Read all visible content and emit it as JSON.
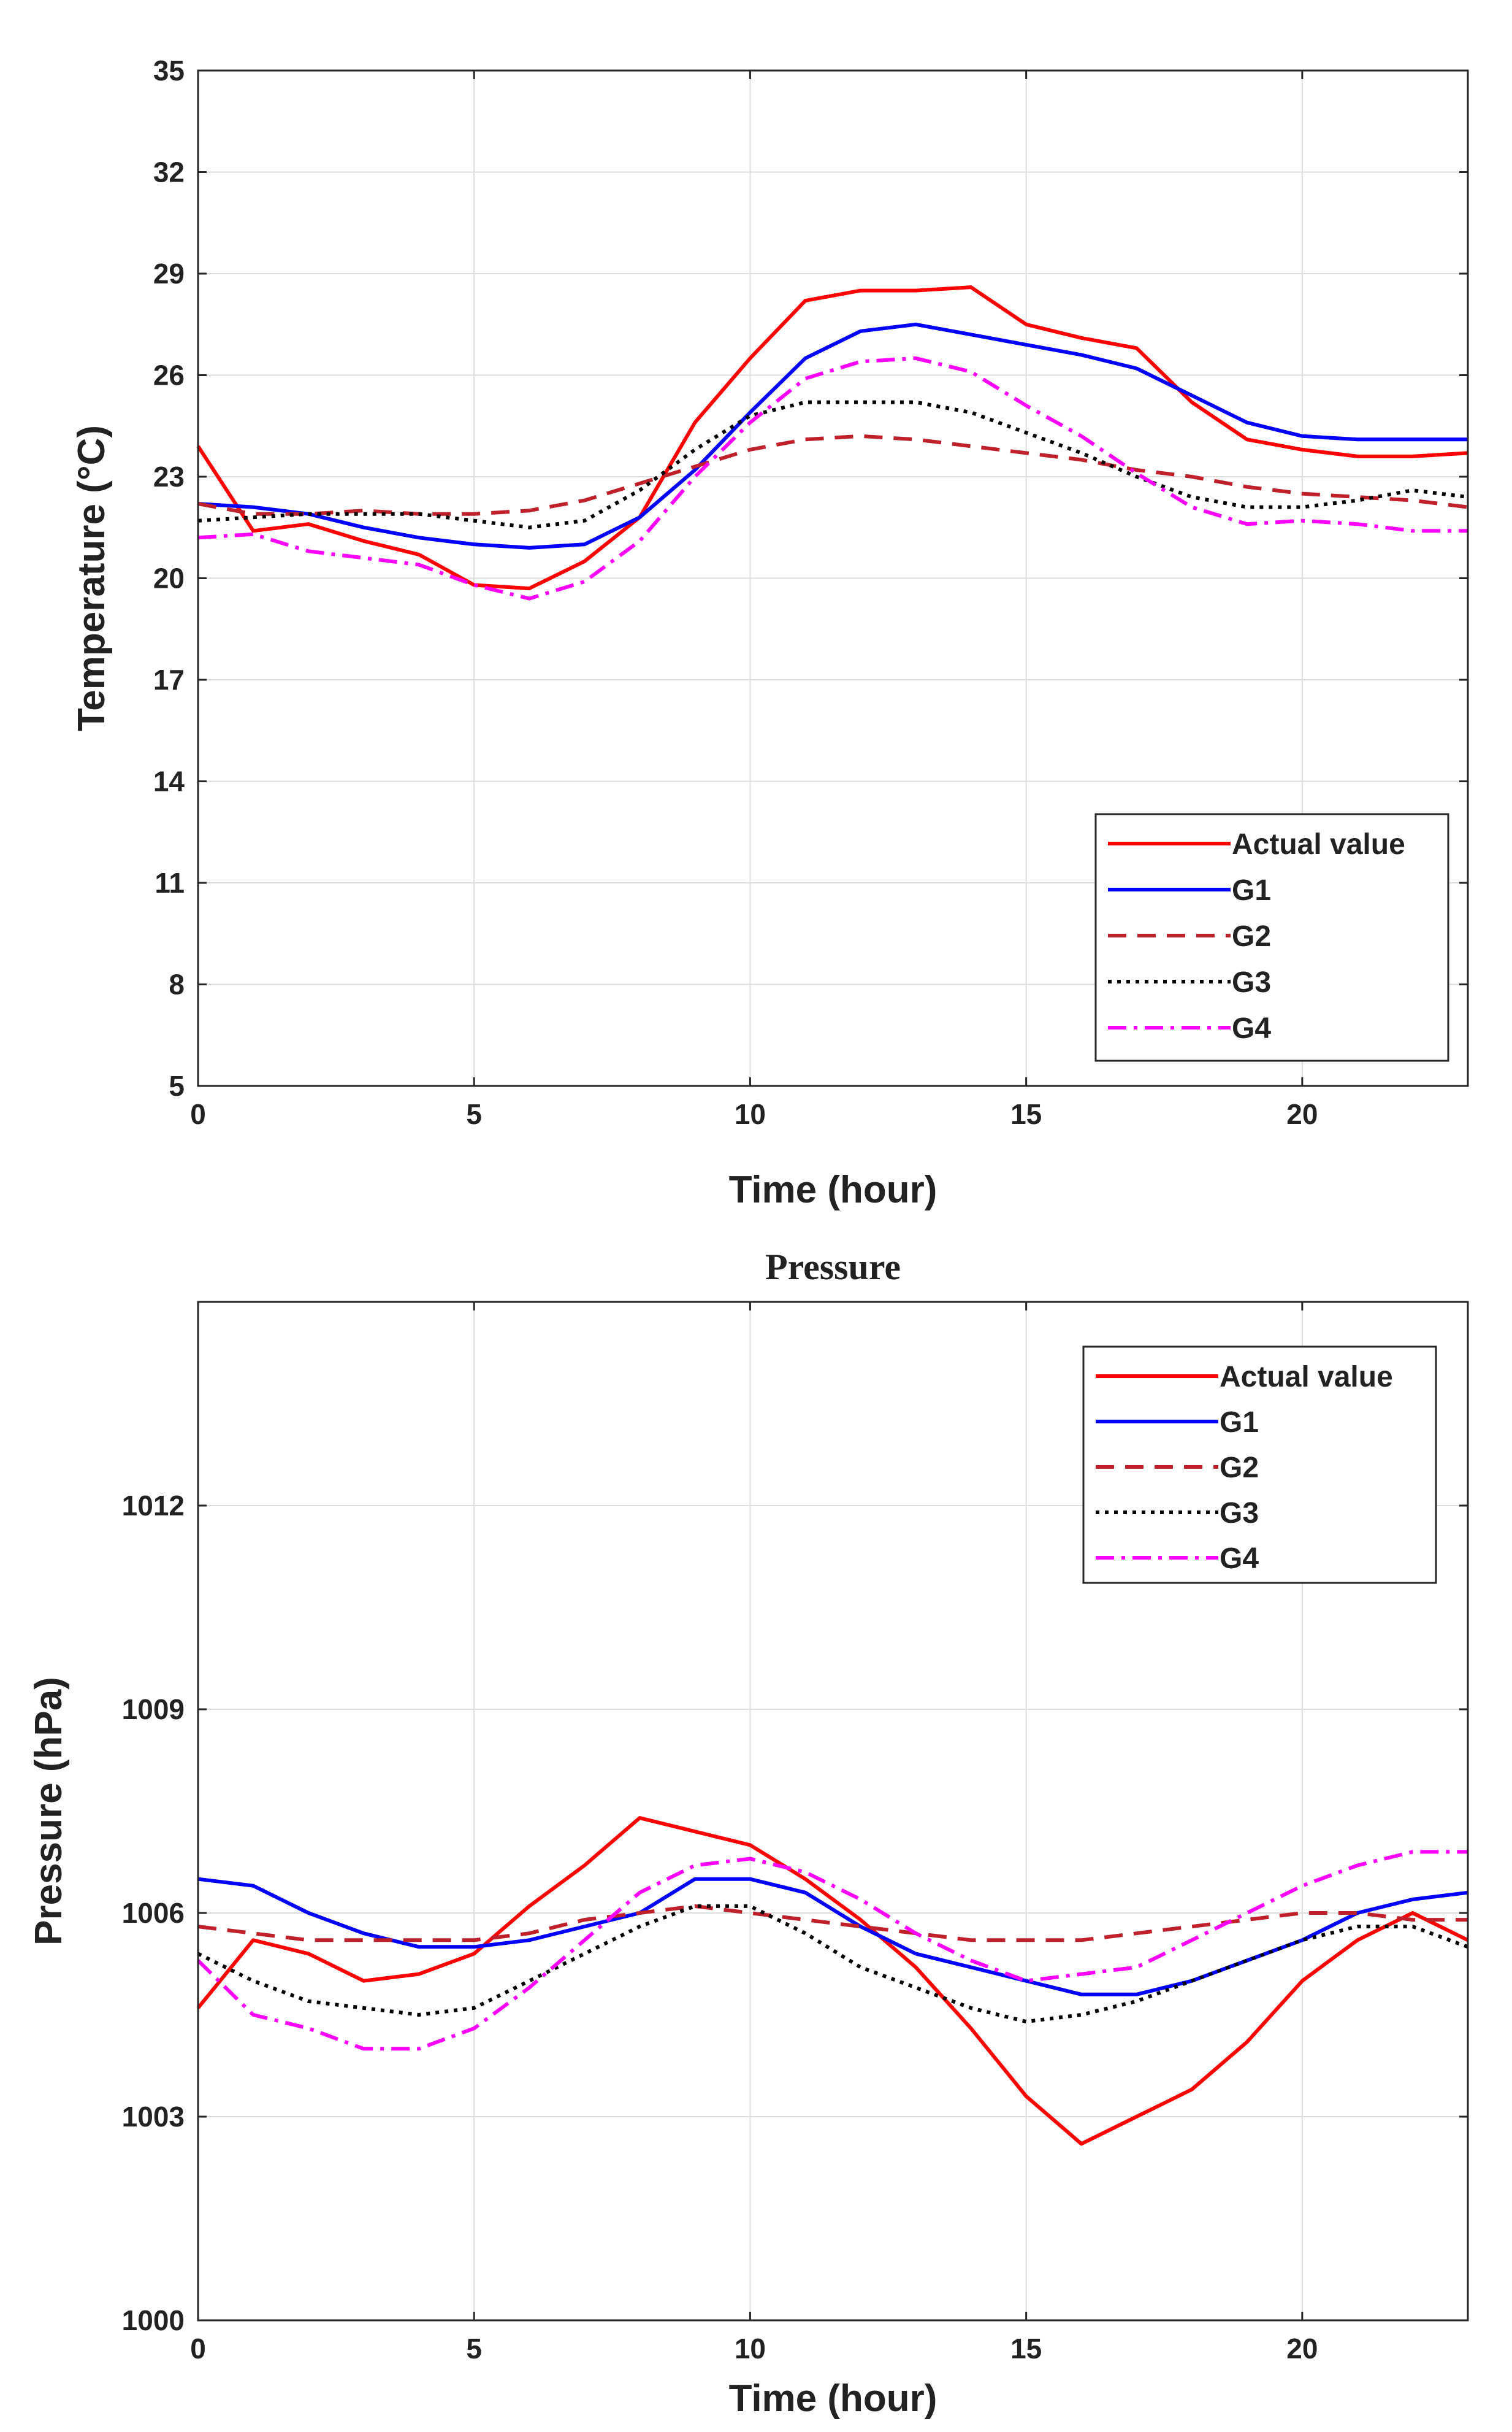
{
  "chart_data": [
    {
      "type": "line",
      "title": "",
      "xlabel": "Time (hour)",
      "ylabel": "Temperature (°C)",
      "xlim": [
        0,
        23
      ],
      "ylim": [
        5,
        35
      ],
      "x_ticks": [
        0,
        5,
        10,
        15,
        20
      ],
      "y_ticks": [
        5,
        8,
        11,
        14,
        17,
        20,
        23,
        26,
        29,
        32,
        35
      ],
      "grid": true,
      "legend_position": "bottom-right",
      "x": [
        0,
        1,
        2,
        3,
        4,
        5,
        6,
        7,
        8,
        9,
        10,
        11,
        12,
        13,
        14,
        15,
        16,
        17,
        18,
        19,
        20,
        21,
        22,
        23
      ],
      "series": [
        {
          "name": "Actual value",
          "color": "#ff0000",
          "dash": "solid",
          "values": [
            23.9,
            21.4,
            21.6,
            21.1,
            20.7,
            19.8,
            19.7,
            20.5,
            21.8,
            24.6,
            26.5,
            28.2,
            28.5,
            28.5,
            28.6,
            27.5,
            27.1,
            26.8,
            25.2,
            24.1,
            23.8,
            23.6,
            23.6,
            23.7
          ]
        },
        {
          "name": "G1",
          "color": "#0000ff",
          "dash": "solid",
          "values": [
            22.2,
            22.1,
            21.9,
            21.5,
            21.2,
            21.0,
            20.9,
            21.0,
            21.8,
            23.2,
            24.9,
            26.5,
            27.3,
            27.5,
            27.2,
            26.9,
            26.6,
            26.2,
            25.4,
            24.6,
            24.2,
            24.1,
            24.1,
            24.1
          ]
        },
        {
          "name": "G2",
          "color": "#c0202a",
          "dash": "dashed",
          "values": [
            22.2,
            21.9,
            21.9,
            22.0,
            21.9,
            21.9,
            22.0,
            22.3,
            22.8,
            23.3,
            23.8,
            24.1,
            24.2,
            24.1,
            23.9,
            23.7,
            23.5,
            23.2,
            23.0,
            22.7,
            22.5,
            22.4,
            22.3,
            22.1
          ]
        },
        {
          "name": "G3",
          "color": "#000000",
          "dash": "dotted",
          "values": [
            21.7,
            21.8,
            21.9,
            21.9,
            21.9,
            21.7,
            21.5,
            21.7,
            22.6,
            23.8,
            24.8,
            25.2,
            25.2,
            25.2,
            24.9,
            24.3,
            23.7,
            23.0,
            22.4,
            22.1,
            22.1,
            22.3,
            22.6,
            22.4
          ]
        },
        {
          "name": "G4",
          "color": "#ff00ff",
          "dash": "dashdot",
          "values": [
            21.2,
            21.3,
            20.8,
            20.6,
            20.4,
            19.8,
            19.4,
            19.9,
            21.1,
            23.0,
            24.6,
            25.9,
            26.4,
            26.5,
            26.1,
            25.1,
            24.2,
            23.1,
            22.1,
            21.6,
            21.7,
            21.6,
            21.4,
            21.4
          ]
        }
      ]
    },
    {
      "type": "line",
      "title": "Pressure",
      "xlabel": "Time (hour)",
      "ylabel": "Pressure (hPa)",
      "xlim": [
        0,
        23
      ],
      "ylim": [
        1000,
        1015
      ],
      "x_ticks": [
        0,
        5,
        10,
        15,
        20
      ],
      "y_ticks": [
        1000,
        1003,
        1006,
        1009,
        1012
      ],
      "grid": true,
      "legend_position": "top-right",
      "x": [
        0,
        1,
        2,
        3,
        4,
        5,
        6,
        7,
        8,
        9,
        10,
        11,
        12,
        13,
        14,
        15,
        16,
        17,
        18,
        19,
        20,
        21,
        22,
        23
      ],
      "series": [
        {
          "name": "Actual value",
          "color": "#ff0000",
          "dash": "solid",
          "values": [
            1004.6,
            1005.6,
            1005.4,
            1005.0,
            1005.1,
            1005.4,
            1006.1,
            1006.7,
            1007.4,
            1007.2,
            1007.0,
            1006.5,
            1005.9,
            1005.2,
            1004.3,
            1003.3,
            1002.6,
            1003.0,
            1003.4,
            1004.1,
            1005.0,
            1005.6,
            1006.0,
            1005.6
          ]
        },
        {
          "name": "G1",
          "color": "#0000ff",
          "dash": "solid",
          "values": [
            1006.5,
            1006.4,
            1006.0,
            1005.7,
            1005.5,
            1005.5,
            1005.6,
            1005.8,
            1006.0,
            1006.5,
            1006.5,
            1006.3,
            1005.8,
            1005.4,
            1005.2,
            1005.0,
            1004.8,
            1004.8,
            1005.0,
            1005.3,
            1005.6,
            1006.0,
            1006.2,
            1006.3
          ]
        },
        {
          "name": "G2",
          "color": "#c0202a",
          "dash": "dashed",
          "values": [
            1005.8,
            1005.7,
            1005.6,
            1005.6,
            1005.6,
            1005.6,
            1005.7,
            1005.9,
            1006.0,
            1006.1,
            1006.0,
            1005.9,
            1005.8,
            1005.7,
            1005.6,
            1005.6,
            1005.6,
            1005.7,
            1005.8,
            1005.9,
            1006.0,
            1006.0,
            1005.9,
            1005.9
          ]
        },
        {
          "name": "G3",
          "color": "#000000",
          "dash": "dotted",
          "values": [
            1005.4,
            1005.0,
            1004.7,
            1004.6,
            1004.5,
            1004.6,
            1005.0,
            1005.4,
            1005.8,
            1006.1,
            1006.1,
            1005.7,
            1005.2,
            1004.9,
            1004.6,
            1004.4,
            1004.5,
            1004.7,
            1005.0,
            1005.3,
            1005.6,
            1005.8,
            1005.8,
            1005.5
          ]
        },
        {
          "name": "G4",
          "color": "#ff00ff",
          "dash": "dashdot",
          "values": [
            1005.3,
            1004.5,
            1004.3,
            1004.0,
            1004.0,
            1004.3,
            1004.9,
            1005.6,
            1006.3,
            1006.7,
            1006.8,
            1006.6,
            1006.2,
            1005.7,
            1005.3,
            1005.0,
            1005.1,
            1005.2,
            1005.6,
            1006.0,
            1006.4,
            1006.7,
            1006.9,
            1006.9
          ]
        }
      ]
    }
  ]
}
